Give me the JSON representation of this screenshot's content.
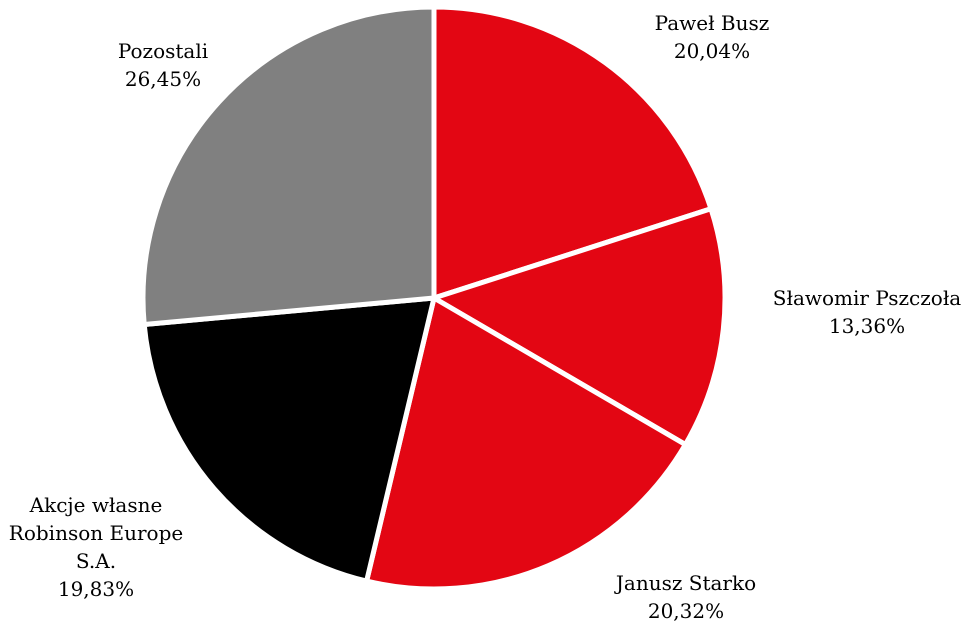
{
  "chart_data": {
    "type": "pie",
    "start_angle_deg": 0,
    "direction": "clockwise",
    "slices": [
      {
        "label_lines": [
          "Paweł Busz"
        ],
        "value_label": "20,04%",
        "value": 20.04,
        "color": "#E30613"
      },
      {
        "label_lines": [
          "Sławomir Pszczoła"
        ],
        "value_label": "13,36%",
        "value": 13.36,
        "color": "#E30613"
      },
      {
        "label_lines": [
          "Janusz Starko"
        ],
        "value_label": "20,32%",
        "value": 20.32,
        "color": "#E30613"
      },
      {
        "label_lines": [
          "Akcje własne",
          "Robinson Europe",
          "S.A."
        ],
        "value_label": "19,83%",
        "value": 19.83,
        "color": "#000000"
      },
      {
        "label_lines": [
          "Pozostali"
        ],
        "value_label": "26,45%",
        "value": 26.45,
        "color": "#808080"
      }
    ],
    "separator_color": "#FFFFFF"
  }
}
